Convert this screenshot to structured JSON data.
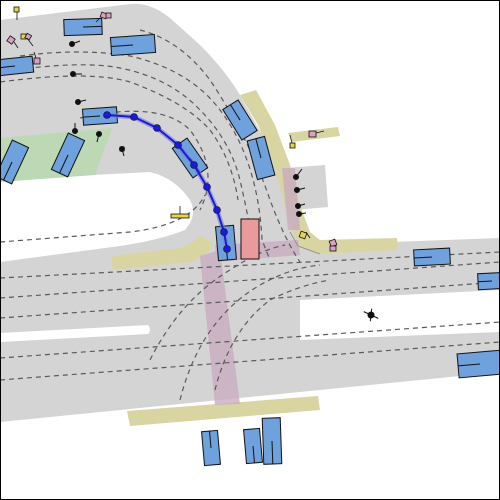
{
  "colors": {
    "background": "#ffffff",
    "road": "#d4d4d4",
    "lane_line": "#5a5a5a",
    "sidewalk": "#d8d5a2",
    "crosswalk": "#c9adbf",
    "grass": "#bcd8b4",
    "vehicle": "#6fa1dc",
    "ego_vehicle": "#e99a9a",
    "outline": "#111111",
    "trajectory": "#1a1ad8",
    "trajectory_fill": "#7a7ad8",
    "pedestrian": "#111111",
    "cyclist": "#111111",
    "sign_yellow": "#e6d24d",
    "sign_pink": "#d8a1c2"
  },
  "icons": {
    "vehicle": "vehicle-box-icon",
    "ego": "ego-vehicle-icon",
    "pedestrian": "pedestrian-icon",
    "cyclist": "cyclist-icon",
    "sign": "traffic-sign-icon",
    "waypoint": "trajectory-waypoint-icon"
  },
  "counts": {
    "vehicles": 16,
    "pedestrians": 9,
    "waypoints": 10
  }
}
